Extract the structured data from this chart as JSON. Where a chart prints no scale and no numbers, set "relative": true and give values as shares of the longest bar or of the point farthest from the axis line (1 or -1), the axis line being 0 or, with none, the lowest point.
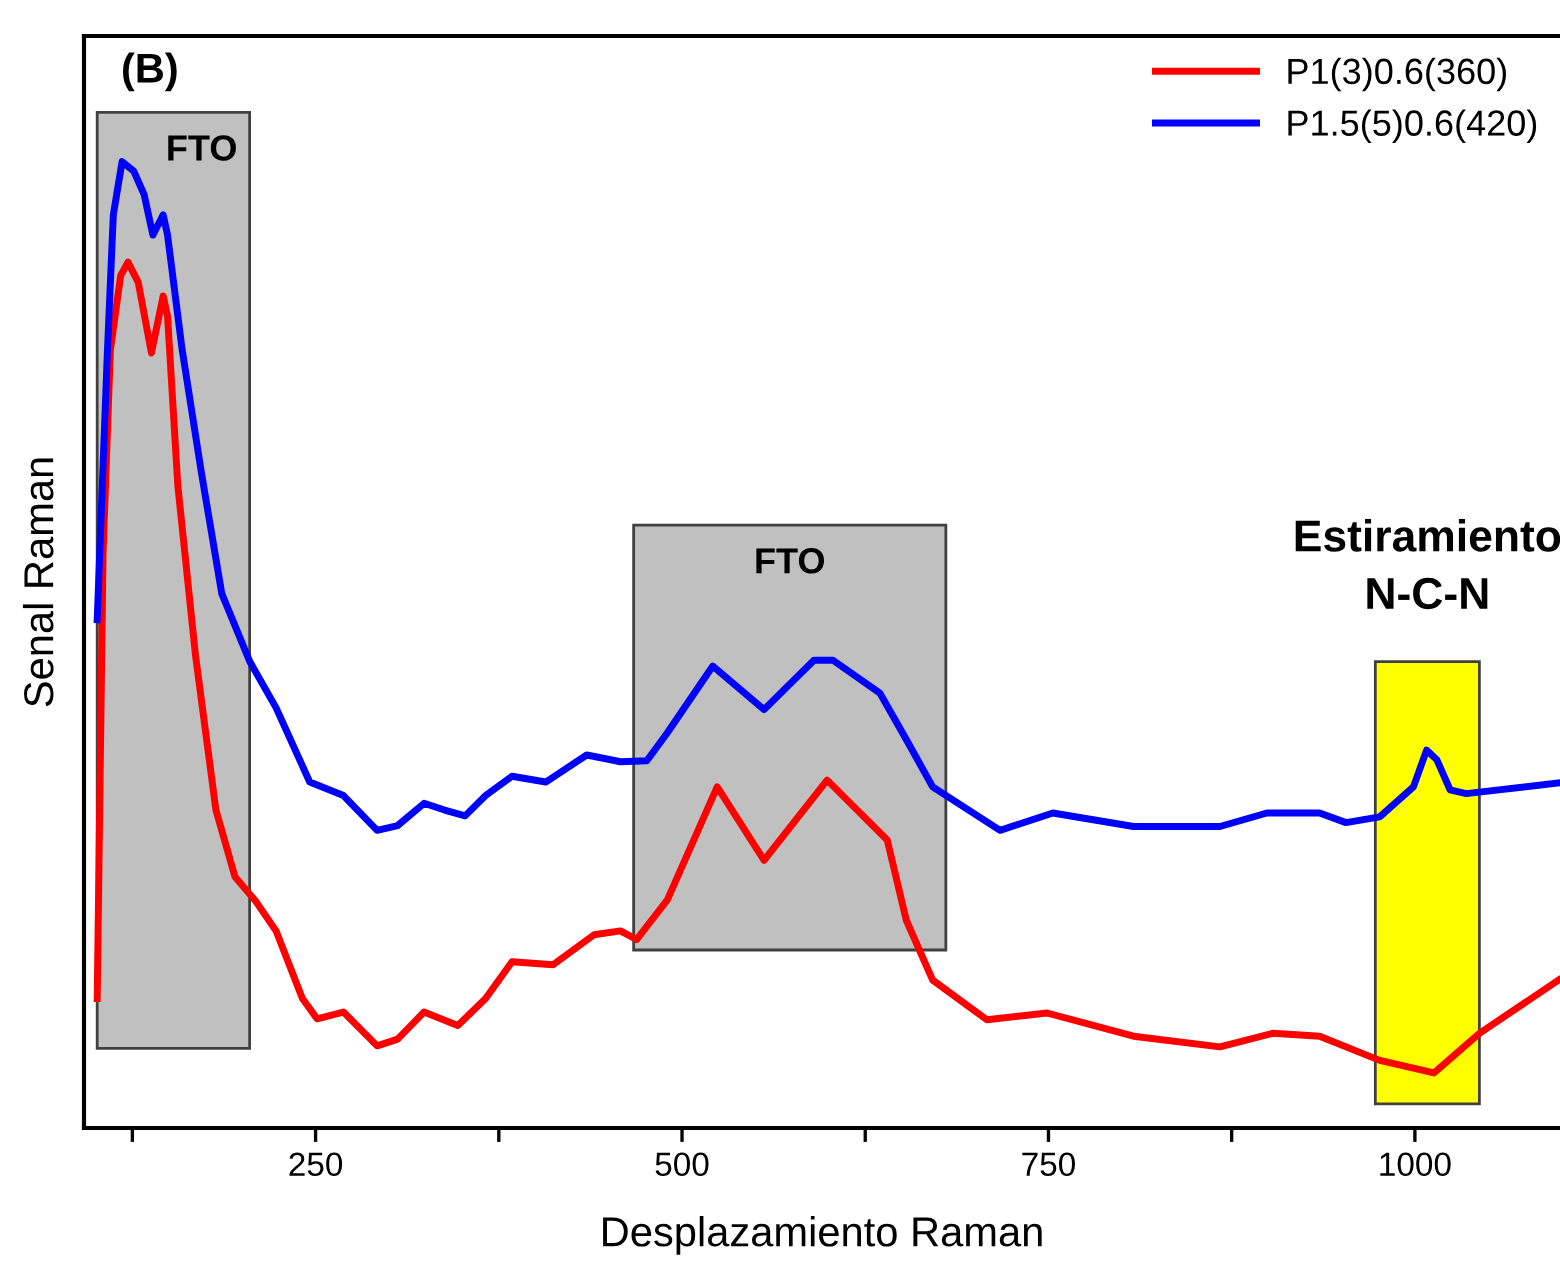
{
  "chart_data": {
    "type": "line",
    "relative": true,
    "xlabel": "Desplazamiento Raman",
    "ylabel": "Senal Raman",
    "xlim": [
      92,
      1099
    ],
    "xticks": [
      {
        "value": 125,
        "label": null
      },
      250,
      {
        "value": 375,
        "label": null
      },
      500,
      {
        "value": 625,
        "label": null
      },
      750,
      {
        "value": 875,
        "label": null
      },
      1000
    ],
    "legend": "top right",
    "grid": false,
    "marker": "none",
    "line_style": "solid",
    "annotations": [
      "(B)"
    ],
    "bands": [
      {
        "axis": "x",
        "from": 101,
        "to": 205,
        "label": "FTO",
        "color": "#c0c0c0"
      },
      {
        "axis": "x",
        "from": 467,
        "to": 680,
        "label": "FTO",
        "color": "#c0c0c0"
      },
      {
        "axis": "x",
        "from": 973,
        "to": 1044,
        "label": "Estiramiento\nN-C-N",
        "color": "#ffff00"
      }
    ],
    "series": [
      {
        "name": "P1(3)0.6(360)",
        "color": "#ff0000",
        "x": [
          101,
          105,
          110,
          117,
          122,
          129,
          138,
          146,
          149,
          156,
          168,
          182,
          195,
          209,
          223,
          241,
          251,
          269,
          292,
          306,
          324,
          347,
          366,
          384,
          412,
          440,
          458,
          469,
          490,
          524,
          556,
          599,
          640,
          653,
          671,
          708,
          749,
          808,
          867,
          903,
          935,
          976,
          1013,
          1044,
          1098
        ],
        "values": [
          0.134,
          0.595,
          0.805,
          0.882,
          0.896,
          0.875,
          0.802,
          0.861,
          0.84,
          0.665,
          0.49,
          0.329,
          0.26,
          0.235,
          0.204,
          0.134,
          0.113,
          0.12,
          0.085,
          0.092,
          0.12,
          0.106,
          0.134,
          0.172,
          0.169,
          0.2,
          0.204,
          0.195,
          0.236,
          0.353,
          0.277,
          0.36,
          0.298,
          0.215,
          0.153,
          0.112,
          0.119,
          0.095,
          0.084,
          0.098,
          0.095,
          0.07,
          0.057,
          0.098,
          0.153
        ]
      },
      {
        "name": "P1.5(5)0.6(420)",
        "color": "#0000ff",
        "x": [
          101,
          108,
          112,
          118,
          126,
          133,
          139,
          146,
          149,
          159,
          172,
          186,
          205,
          223,
          246,
          269,
          292,
          306,
          324,
          338,
          352,
          366,
          384,
          407,
          435,
          458,
          476,
          490,
          521,
          556,
          590,
          603,
          635,
          653,
          671,
          717,
          753,
          808,
          867,
          899,
          935,
          953,
          976,
          999,
          1008,
          1015,
          1024,
          1035,
          1098
        ],
        "values": [
          0.526,
          0.805,
          0.945,
          1,
          0.99,
          0.966,
          0.924,
          0.945,
          0.924,
          0.805,
          0.679,
          0.553,
          0.483,
          0.435,
          0.358,
          0.344,
          0.308,
          0.313,
          0.336,
          0.329,
          0.323,
          0.344,
          0.364,
          0.358,
          0.386,
          0.379,
          0.38,
          0.409,
          0.478,
          0.433,
          0.484,
          0.484,
          0.45,
          0.402,
          0.353,
          0.308,
          0.326,
          0.312,
          0.312,
          0.326,
          0.326,
          0.316,
          0.322,
          0.353,
          0.391,
          0.381,
          0.35,
          0.346,
          0.357
        ]
      }
    ]
  }
}
